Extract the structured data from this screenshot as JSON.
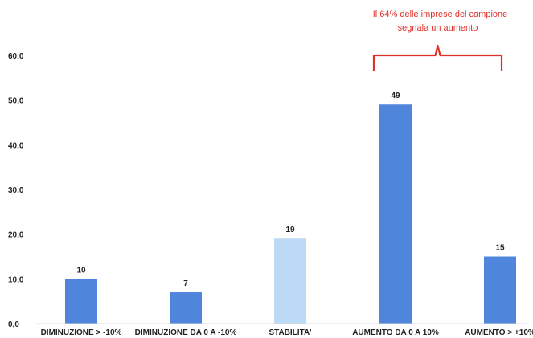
{
  "chart_data": {
    "type": "bar",
    "categories": [
      "DIMINUZIONE > -10%",
      "DIMINUZIONE DA 0 A -10%",
      "STABILITA'",
      "AUMENTO DA 0 A 10%",
      "AUMENTO > +10%"
    ],
    "values": [
      10,
      7,
      19,
      49,
      15
    ],
    "data_labels": [
      "10",
      "7",
      "19",
      "49",
      "15"
    ],
    "bar_colors": [
      "#4f86dc",
      "#4f86dc",
      "#bcdaf6",
      "#4f86dc",
      "#4f86dc"
    ],
    "ylim": [
      0,
      60
    ],
    "yticks": [
      0,
      10,
      20,
      30,
      40,
      50,
      60
    ],
    "ytick_labels": [
      "0,0",
      "10,0",
      "20,0",
      "30,0",
      "40,0",
      "50,0",
      "60,0"
    ],
    "grid": false,
    "title": "",
    "xlabel": "",
    "ylabel": "",
    "annotation": {
      "lines": [
        "Il 64% delle imprese del campione",
        "segnala un aumento"
      ],
      "color": "#e0302a",
      "spans_categories": [
        "AUMENTO DA 0 A 10%",
        "AUMENTO > +10%"
      ]
    }
  }
}
